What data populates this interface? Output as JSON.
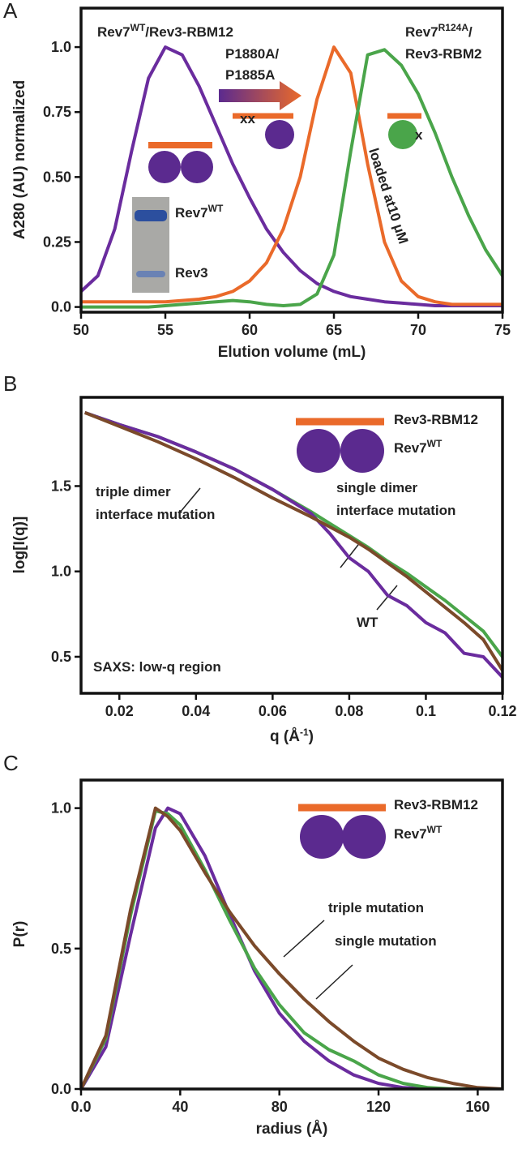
{
  "chart_data": [
    {
      "type": "line",
      "panel": "A",
      "xlabel": "Elution volume (mL)",
      "ylabel": "A280 (AU) normalized",
      "xlim": [
        50,
        75
      ],
      "ylim": [
        -0.02,
        1.15
      ],
      "xticks": [
        50,
        55,
        60,
        65,
        70,
        75
      ],
      "yticks": [
        {
          "value": 0,
          "label": "0.0"
        },
        0.25,
        {
          "value": 0.5,
          "label": "0.50"
        },
        0.75,
        {
          "value": 1,
          "label": "1.0"
        }
      ],
      "x": [
        50,
        51,
        52,
        53,
        54,
        55,
        56,
        57,
        58,
        59,
        60,
        61,
        62,
        63,
        64,
        65,
        66,
        67,
        68,
        69,
        70,
        71,
        72,
        73,
        74,
        75
      ],
      "series": [
        {
          "color": "#6a2c9e",
          "values": [
            0.06,
            0.12,
            0.3,
            0.6,
            0.88,
            1.0,
            0.97,
            0.85,
            0.7,
            0.55,
            0.42,
            0.3,
            0.21,
            0.14,
            0.09,
            0.06,
            0.04,
            0.03,
            0.02,
            0.015,
            0.01,
            0.005,
            0.005,
            0.005,
            0.005,
            0.005
          ]
        },
        {
          "color": "#ea6a2a",
          "values": [
            0.02,
            0.02,
            0.02,
            0.02,
            0.02,
            0.02,
            0.025,
            0.03,
            0.04,
            0.06,
            0.1,
            0.17,
            0.3,
            0.5,
            0.8,
            1.0,
            0.9,
            0.55,
            0.25,
            0.1,
            0.04,
            0.02,
            0.01,
            0.01,
            0.01,
            0.01
          ]
        },
        {
          "color": "#4aa54a",
          "values": [
            0.0,
            0.0,
            0.0,
            0.0,
            0.0,
            0.005,
            0.01,
            0.015,
            0.02,
            0.025,
            0.02,
            0.01,
            0.005,
            0.01,
            0.05,
            0.2,
            0.6,
            0.97,
            0.99,
            0.93,
            0.82,
            0.67,
            0.5,
            0.35,
            0.22,
            0.12
          ]
        }
      ],
      "annotations": [
        {
          "text": "Rev7",
          "sup": "WT",
          "rest": "/Rev3-RBM12",
          "color": "#333333"
        },
        {
          "text": "P1880A/",
          "color": "#ea6a2a"
        },
        {
          "text": "P1885A",
          "color": "#ea6a2a"
        },
        {
          "text": "Rev7",
          "sup": "R124A",
          "rest": "/",
          "color": "#333333"
        },
        {
          "text": "Rev3-RBM2",
          "color": "#333333"
        },
        {
          "text": "loaded at10 μM",
          "color": "#ea6a2a"
        },
        {
          "text": "Rev7",
          "sup": "WT",
          "color": "#333333"
        },
        {
          "text": "Rev3",
          "color": "#333333"
        },
        {
          "text": "xx",
          "color": "#222222"
        },
        {
          "text": "x",
          "color": "#222222"
        }
      ]
    },
    {
      "type": "line",
      "panel": "B",
      "xlabel": {
        "text": "q (Å",
        "sup": "-1",
        "rest": ")"
      },
      "ylabel": "log[I(q)]",
      "xlim": [
        0.01,
        0.12
      ],
      "ylim": [
        0.286,
        2.02
      ],
      "xticks": [
        0.02,
        0.04,
        0.06,
        0.08,
        0.1,
        0.12
      ],
      "yticks": [
        0.5,
        {
          "value": 1,
          "label": "1.0"
        },
        1.5
      ],
      "x": [
        0.011,
        0.02,
        0.03,
        0.04,
        0.05,
        0.06,
        0.07,
        0.075,
        0.08,
        0.085,
        0.09,
        0.095,
        0.1,
        0.105,
        0.11,
        0.115,
        0.12
      ],
      "series": [
        {
          "color": "#4aa54a",
          "values": [
            1.93,
            1.86,
            1.79,
            1.7,
            1.6,
            1.48,
            1.35,
            1.28,
            1.21,
            1.14,
            1.06,
            0.99,
            0.91,
            0.83,
            0.74,
            0.65,
            0.5
          ]
        },
        {
          "color": "#6a2c9e",
          "values": [
            1.93,
            1.86,
            1.79,
            1.7,
            1.6,
            1.48,
            1.34,
            1.22,
            1.08,
            1.0,
            0.86,
            0.8,
            0.7,
            0.64,
            0.52,
            0.5,
            0.38
          ]
        },
        {
          "color": "#7b4a2a",
          "values": [
            1.93,
            1.85,
            1.76,
            1.66,
            1.55,
            1.43,
            1.32,
            1.26,
            1.2,
            1.13,
            1.05,
            0.97,
            0.88,
            0.79,
            0.7,
            0.6,
            0.42
          ]
        }
      ],
      "annotations": [
        {
          "text": "Rev3-RBM12",
          "color": "#333333"
        },
        {
          "text": "Rev7",
          "sup": "WT",
          "color": "#333333"
        },
        {
          "text": "triple dimer",
          "color": "#7b4a2a"
        },
        {
          "text": "interface mutation",
          "color": "#7b4a2a"
        },
        {
          "text": "single dimer",
          "color": "#4aa54a"
        },
        {
          "text": "interface mutation",
          "color": "#4aa54a"
        },
        {
          "text": "WT",
          "color": "#6a2c9e"
        },
        {
          "text": "SAXS: low-q region",
          "color": "#222222"
        }
      ]
    },
    {
      "type": "line",
      "panel": "C",
      "xlabel": "radius (Å)",
      "ylabel": "P(r)",
      "xlim": [
        0,
        170
      ],
      "ylim": [
        0,
        1.1
      ],
      "xticks": [
        {
          "value": 0,
          "label": "0.0"
        },
        40,
        80,
        120,
        160
      ],
      "yticks": [
        {
          "value": 0,
          "label": "0.0"
        },
        0.5,
        {
          "value": 1,
          "label": "1.0"
        }
      ],
      "x": [
        0,
        10,
        20,
        30,
        35,
        40,
        50,
        60,
        70,
        80,
        90,
        100,
        110,
        120,
        130,
        140,
        150,
        160,
        170
      ],
      "series": [
        {
          "color": "#6a2c9e",
          "values": [
            0,
            0.15,
            0.55,
            0.93,
            1.0,
            0.98,
            0.83,
            0.62,
            0.42,
            0.27,
            0.17,
            0.1,
            0.05,
            0.02,
            0.005,
            0,
            0,
            0,
            0
          ]
        },
        {
          "color": "#4aa54a",
          "values": [
            0,
            0.18,
            0.62,
            0.99,
            0.98,
            0.94,
            0.78,
            0.6,
            0.43,
            0.3,
            0.2,
            0.14,
            0.1,
            0.05,
            0.02,
            0.005,
            0,
            0,
            0
          ]
        },
        {
          "color": "#7b4a2a",
          "values": [
            0,
            0.19,
            0.64,
            1.0,
            0.97,
            0.92,
            0.77,
            0.63,
            0.51,
            0.41,
            0.32,
            0.24,
            0.17,
            0.11,
            0.07,
            0.04,
            0.02,
            0.005,
            0
          ]
        }
      ],
      "annotations": [
        {
          "text": "Rev3-RBM12",
          "color": "#333333"
        },
        {
          "text": "Rev7",
          "sup": "WT",
          "color": "#333333"
        },
        {
          "text": "triple mutation",
          "color": "#7b4a2a"
        },
        {
          "text": "single mutation",
          "color": "#4aa54a"
        }
      ]
    }
  ]
}
